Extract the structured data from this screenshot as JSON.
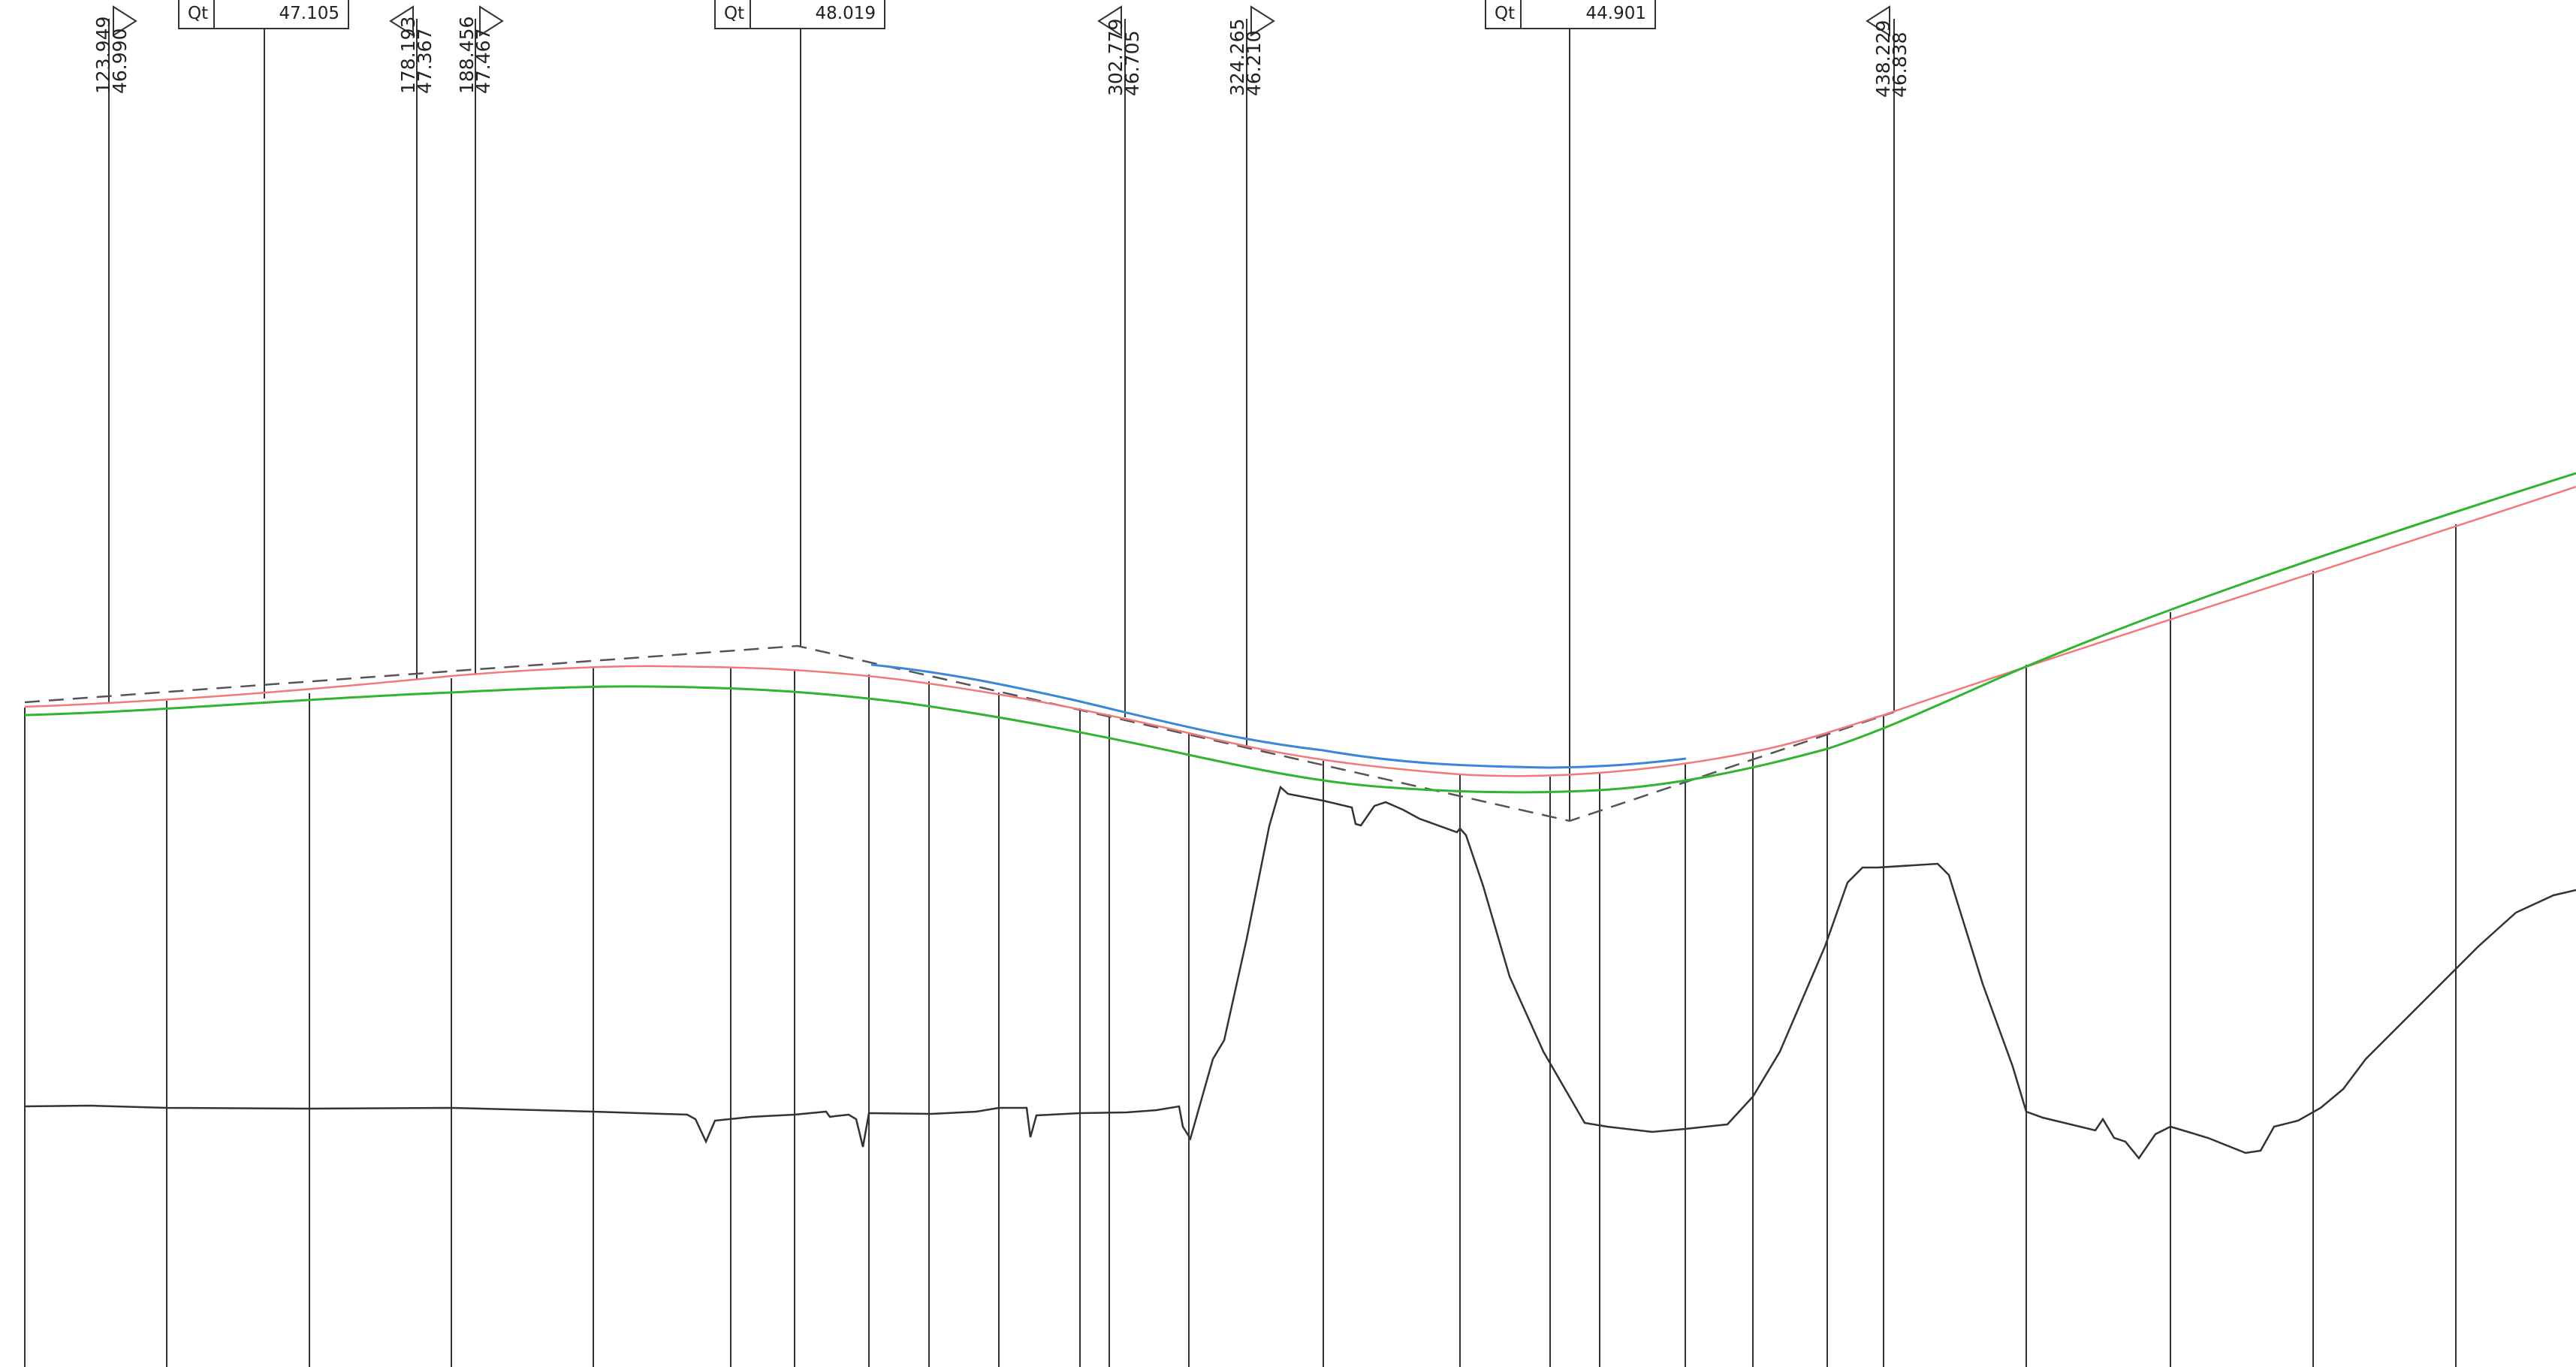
{
  "vertical_curve_labels": [
    {
      "prefix": "Qt",
      "value": "47.105"
    },
    {
      "prefix": "Qt",
      "value": "48.019"
    },
    {
      "prefix": "Qt",
      "value": "44.901"
    }
  ],
  "station_annotations": [
    {
      "chainage": "123.949",
      "elevation": "46.990",
      "marker": "right"
    },
    {
      "chainage": "178.193",
      "elevation": "47.367",
      "marker": "left"
    },
    {
      "chainage": "188.456",
      "elevation": "47.467",
      "marker": "right"
    },
    {
      "chainage": "302.779",
      "elevation": "46.705",
      "marker": "left"
    },
    {
      "chainage": "324.265",
      "elevation": "46.210",
      "marker": "right"
    },
    {
      "chainage": "438.229",
      "elevation": "46.838",
      "marker": "left"
    }
  ],
  "colors": {
    "background": "#ffffff",
    "line_work": "#333333",
    "tangent_dashed": "#555555",
    "design_profile_red": "#f07a7a",
    "profile_green": "#2fb52f",
    "profile_blue": "#3a86d8",
    "ground_line": "#333333"
  }
}
